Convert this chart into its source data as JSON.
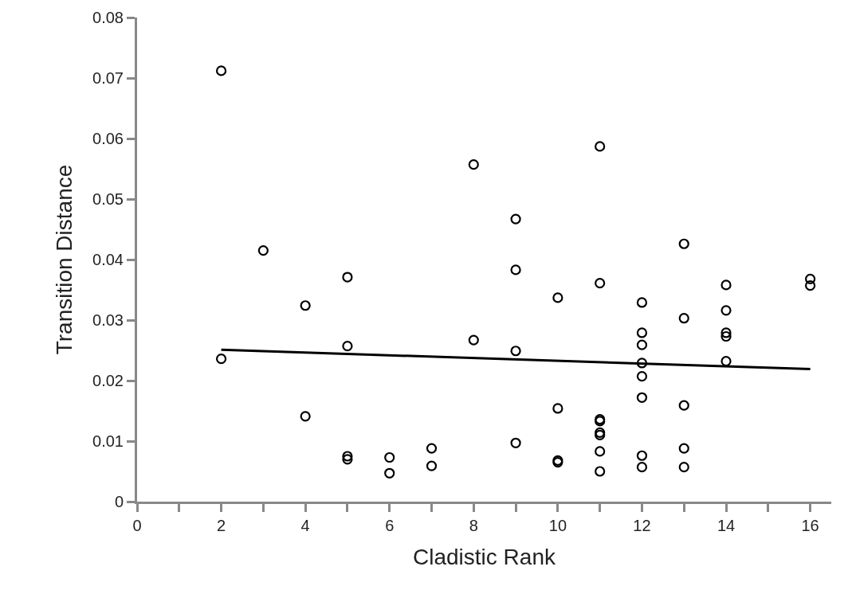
{
  "chart_data": {
    "type": "scatter",
    "xlabel": "Cladistic Rank",
    "ylabel": "Transition Distance",
    "grid": false,
    "marker": "circle",
    "xlim": [
      0,
      16.5
    ],
    "ylim": [
      0,
      0.08
    ],
    "xticks": [
      0,
      {
        "value": 1,
        "label": null
      },
      2,
      {
        "value": 3,
        "label": null
      },
      4,
      {
        "value": 5,
        "label": null
      },
      6,
      {
        "value": 7,
        "label": null
      },
      8,
      {
        "value": 9,
        "label": null
      },
      10,
      {
        "value": 11,
        "label": null
      },
      12,
      {
        "value": 13,
        "label": null
      },
      14,
      {
        "value": 15,
        "label": null
      },
      16
    ],
    "yticks": [
      0,
      0.01,
      0.02,
      0.03,
      0.04,
      0.05,
      0.06,
      0.07,
      0.08
    ],
    "series": [
      {
        "color": "#000000",
        "x": [
          2,
          2,
          3,
          4,
          4,
          5,
          5,
          5,
          5,
          6,
          6,
          7,
          7,
          8,
          8,
          9,
          9,
          9,
          9,
          10,
          10,
          10,
          10,
          11,
          11,
          11,
          11,
          11,
          11,
          11,
          11,
          12,
          12,
          12,
          12,
          12,
          12,
          12,
          12,
          13,
          13,
          13,
          13,
          13,
          14,
          14,
          14,
          14,
          14,
          16,
          16
        ],
        "values": [
          0.0712,
          0.0236,
          0.0415,
          0.0324,
          0.0141,
          0.0371,
          0.0257,
          0.0075,
          0.007,
          0.0073,
          0.0047,
          0.0088,
          0.0059,
          0.0557,
          0.0267,
          0.0467,
          0.0383,
          0.0249,
          0.0097,
          0.0337,
          0.0154,
          0.0068,
          0.0065,
          0.0587,
          0.0361,
          0.0136,
          0.0133,
          0.0114,
          0.011,
          0.0083,
          0.005,
          0.0329,
          0.0279,
          0.0259,
          0.0229,
          0.0207,
          0.0172,
          0.0076,
          0.0057,
          0.0426,
          0.0303,
          0.0159,
          0.0088,
          0.0057,
          0.0358,
          0.0316,
          0.0279,
          0.0273,
          0.0232,
          0.0368,
          0.0357
        ]
      },
      {
        "type": "line",
        "color": "#000000",
        "x": [
          2,
          16
        ],
        "values": [
          0.0251,
          0.0219
        ],
        "marker": "none",
        "line_style": "solid"
      }
    ]
  }
}
